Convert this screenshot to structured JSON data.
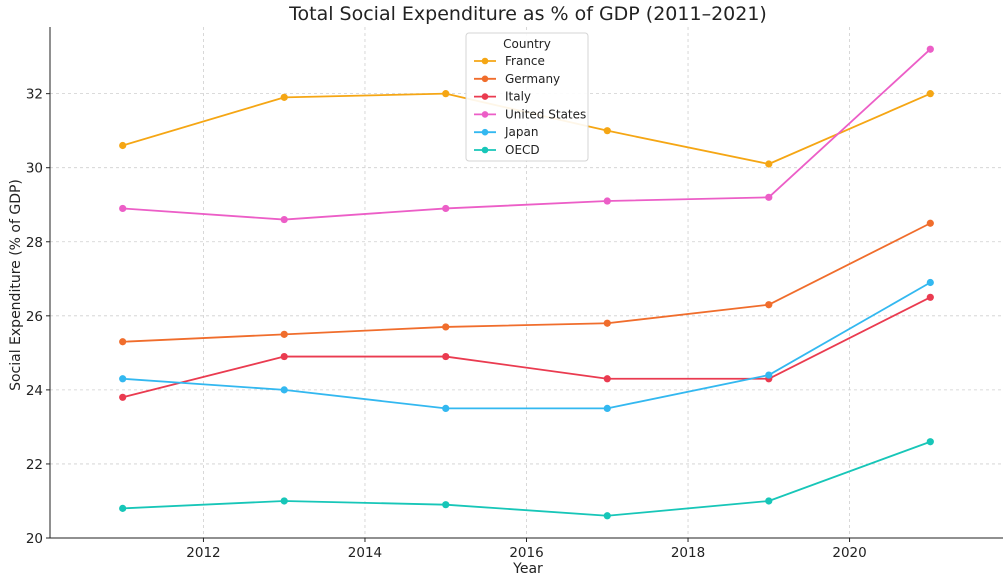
{
  "chart_data": {
    "type": "line",
    "title": "Total Social Expenditure as % of GDP (2011–2021)",
    "xlabel": "Year",
    "ylabel": "Social Expenditure (% of GDP)",
    "x": [
      2011,
      2013,
      2015,
      2017,
      2019,
      2021
    ],
    "xlim": [
      2010.1,
      2021.9
    ],
    "ylim": [
      20,
      33.8
    ],
    "xticks": [
      2012,
      2014,
      2016,
      2018,
      2020
    ],
    "yticks": [
      20,
      22,
      24,
      26,
      28,
      30,
      32
    ],
    "xtick_labels": [
      "2012",
      "2014",
      "2016",
      "2018",
      "2020"
    ],
    "ytick_labels": [
      "20",
      "22",
      "24",
      "26",
      "28",
      "30",
      "32"
    ],
    "grid": true,
    "legend": {
      "title": "Country",
      "placement": "top-center"
    },
    "series": [
      {
        "name": "France",
        "color": "#f5a614",
        "values": [
          30.6,
          31.9,
          32.0,
          31.0,
          30.1,
          32.0
        ]
      },
      {
        "name": "Germany",
        "color": "#f06d2c",
        "values": [
          25.3,
          25.5,
          25.7,
          25.8,
          26.3,
          28.5
        ]
      },
      {
        "name": "Italy",
        "color": "#ea3b50",
        "values": [
          23.8,
          24.9,
          24.9,
          24.3,
          24.3,
          26.5
        ]
      },
      {
        "name": "United States",
        "color": "#ec5ec7",
        "values": [
          28.9,
          28.6,
          28.9,
          29.1,
          29.2,
          33.2
        ]
      },
      {
        "name": "Japan",
        "color": "#33b8f0",
        "values": [
          24.3,
          24.0,
          23.5,
          23.5,
          24.4,
          26.9
        ]
      },
      {
        "name": "OECD",
        "color": "#17c6b8",
        "values": [
          20.8,
          21.0,
          20.9,
          20.6,
          21.0,
          22.6
        ]
      }
    ]
  }
}
